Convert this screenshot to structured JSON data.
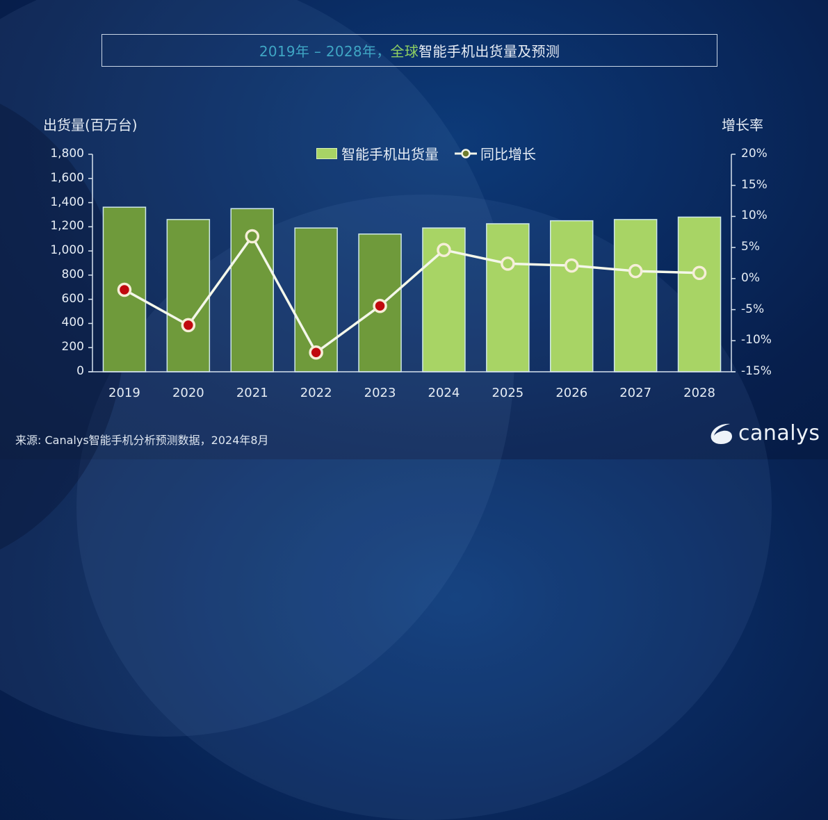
{
  "title": {
    "part_years": "2019年 – 2028年，",
    "part_global": "全球",
    "part_rest": "智能手机出货量及预测"
  },
  "axes": {
    "left_title": "出货量(百万台)",
    "right_title": "增长率",
    "left_ticks": [
      "1,800",
      "1,600",
      "1,400",
      "1,200",
      "1,000",
      "800",
      "600",
      "400",
      "200",
      "0"
    ],
    "right_ticks": [
      "20%",
      "15%",
      "10%",
      "5%",
      "0%",
      "-5%",
      "-10%",
      "-15%"
    ]
  },
  "legend": {
    "bars": "智能手机出货量",
    "line": "同比增长"
  },
  "source": "来源: Canalys智能手机分析预测数据，2024年8月",
  "logo": {
    "text": "canalys",
    "icon": "canalys-swoosh-icon"
  },
  "colors": {
    "bar_historical": "#6f9a3b",
    "bar_forecast": "#a8d465",
    "bar_border": "#cfe8ea",
    "line": "#f4f7ea",
    "marker_negative": "#c0080e",
    "title_teal": "#3fa6c4",
    "title_green": "#8fd062"
  },
  "chart_data": {
    "type": "bar",
    "title": "2019年 – 2028年，全球智能手机出货量及预测",
    "categories": [
      "2019",
      "2020",
      "2021",
      "2022",
      "2023",
      "2024",
      "2025",
      "2026",
      "2027",
      "2028"
    ],
    "series": [
      {
        "name": "智能手机出货量",
        "type": "bar",
        "axis": "left",
        "values": [
          1362,
          1260,
          1350,
          1190,
          1140,
          1190,
          1225,
          1250,
          1260,
          1280
        ],
        "forecast_from": "2024"
      },
      {
        "name": "同比增长",
        "type": "line",
        "axis": "right",
        "unit": "%",
        "values": [
          -1.8,
          -7.5,
          6.8,
          -11.9,
          -4.4,
          4.6,
          2.4,
          2.1,
          1.2,
          0.9
        ]
      }
    ],
    "xlabel": "",
    "ylabel": "出货量(百万台)",
    "ylabel_right": "增长率",
    "ylim": [
      0,
      1800
    ],
    "ylim_right": [
      -15,
      20
    ],
    "yticks": [
      0,
      200,
      400,
      600,
      800,
      1000,
      1200,
      1400,
      1600,
      1800
    ],
    "yticks_right": [
      -15,
      -10,
      -5,
      0,
      5,
      10,
      15,
      20
    ],
    "grid": false,
    "legend_position": "top-center"
  }
}
